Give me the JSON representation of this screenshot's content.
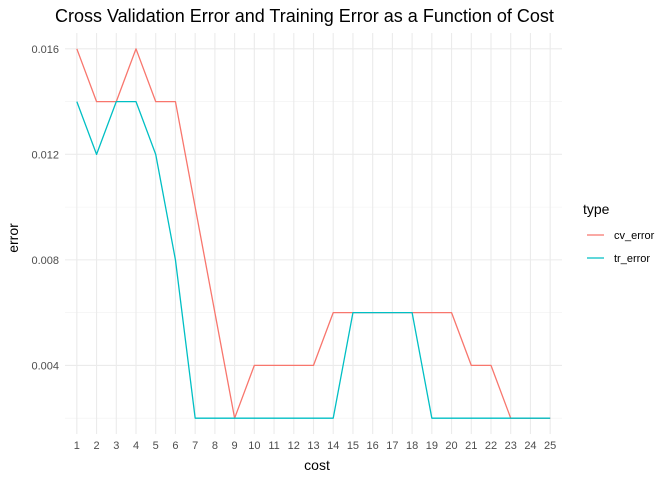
{
  "chart_data": {
    "type": "line",
    "title": "Cross Validation Error and Training Error as a Function of Cost",
    "xlabel": "cost",
    "ylabel": "error",
    "categories": [
      "1",
      "2",
      "3",
      "4",
      "5",
      "6",
      "7",
      "8",
      "9",
      "10",
      "11",
      "12",
      "13",
      "14",
      "15",
      "16",
      "17",
      "18",
      "19",
      "20",
      "21",
      "22",
      "23",
      "24",
      "25"
    ],
    "x": [
      1,
      2,
      3,
      4,
      5,
      6,
      7,
      8,
      9,
      10,
      11,
      12,
      13,
      14,
      15,
      16,
      17,
      18,
      19,
      20,
      21,
      22,
      23,
      24,
      25
    ],
    "ylim": [
      0.0014,
      0.0166
    ],
    "yticks": [
      0.004,
      0.008,
      0.012,
      0.016
    ],
    "ytick_labels": [
      "0.004",
      "0.008",
      "0.012",
      "0.016"
    ],
    "grid": true,
    "legend": {
      "title": "type",
      "position": "right"
    },
    "series": [
      {
        "name": "cv_error",
        "color": "#F8766D",
        "values": [
          0.016,
          0.014,
          0.014,
          0.016,
          0.014,
          0.014,
          0.01,
          0.006,
          0.002,
          0.004,
          0.004,
          0.004,
          0.004,
          0.006,
          0.006,
          0.006,
          0.006,
          0.006,
          0.006,
          0.006,
          0.004,
          0.004,
          0.002,
          0.002,
          0.002
        ]
      },
      {
        "name": "tr_error",
        "color": "#00BFC4",
        "values": [
          0.014,
          0.012,
          0.014,
          0.014,
          0.012,
          0.008,
          0.002,
          0.002,
          0.002,
          0.002,
          0.002,
          0.002,
          0.002,
          0.002,
          0.006,
          0.006,
          0.006,
          0.006,
          0.002,
          0.002,
          0.002,
          0.002,
          0.002,
          0.002,
          0.002
        ]
      }
    ]
  }
}
